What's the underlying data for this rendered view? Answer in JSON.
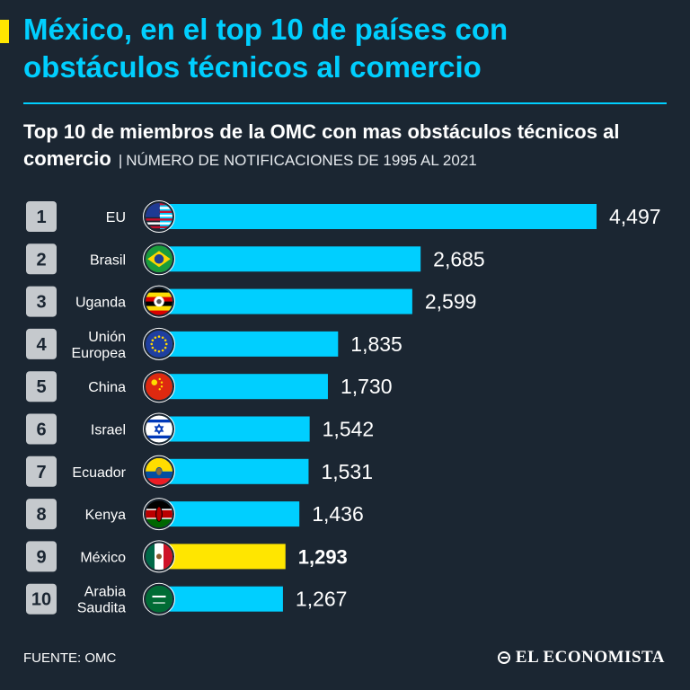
{
  "header": {
    "title": "México, en el top 10 de países con obstáculos técnicos al comercio",
    "subtitle_main": "Top 10 de miembros de la OMC con mas obstáculos técnicos al comercio",
    "subtitle_separator": "|",
    "subtitle_unit": "NÚMERO DE NOTIFICACIONES DE 1995 AL 2021"
  },
  "chart_data": {
    "type": "bar",
    "orientation": "horizontal",
    "ranks": [
      "1",
      "2",
      "3",
      "4",
      "5",
      "6",
      "7",
      "8",
      "9",
      "10"
    ],
    "categories": [
      [
        "EU"
      ],
      [
        "Brasil"
      ],
      [
        "Uganda"
      ],
      [
        "Unión",
        "Europea"
      ],
      [
        "China"
      ],
      [
        "Israel"
      ],
      [
        "Ecuador"
      ],
      [
        "Kenya"
      ],
      [
        "México"
      ],
      [
        "Arabia",
        "Saudita"
      ]
    ],
    "values": [
      4497,
      2685,
      2599,
      1835,
      1730,
      1542,
      1531,
      1436,
      1293,
      1267
    ],
    "value_labels": [
      "4,497",
      "2,685",
      "2,599",
      "1,835",
      "1,730",
      "1,542",
      "1,531",
      "1,436",
      "1,293",
      "1,267"
    ],
    "highlight_index": 8,
    "flags": [
      "us-flag-icon",
      "brazil-flag-icon",
      "uganda-flag-icon",
      "eu-flag-icon",
      "china-flag-icon",
      "israel-flag-icon",
      "ecuador-flag-icon",
      "kenya-flag-icon",
      "mexico-flag-icon",
      "saudi-arabia-flag-icon"
    ],
    "colors": {
      "bar": "#00cfff",
      "highlight": "#ffe600",
      "rank_box": "#c5c9cd",
      "rank_text": "#1b2632",
      "background": "#1b2632"
    },
    "xlim": [
      0,
      4497
    ]
  },
  "footer": {
    "source": "FUENTE: OMC",
    "logo": "EL ECONOMISTA"
  }
}
